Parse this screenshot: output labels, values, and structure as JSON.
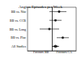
{
  "chart_data": {
    "type": "forest",
    "title": "Angina Episodes per Week",
    "categories": [
      "BB vs. Nitr",
      "BB vs. CCB",
      "BB vs. Long",
      "BB vs. Plac",
      "All Studies"
    ],
    "values": [
      0.6,
      0.3,
      -0.2,
      0.9,
      0.3
    ],
    "low": [
      -0.2,
      -0.2,
      -1.0,
      0.4,
      0.0
    ],
    "high": [
      1.2,
      0.8,
      0.6,
      1.4,
      0.6
    ],
    "reference": 0,
    "xlim": [
      -2,
      2
    ],
    "tick_labels": "y",
    "footer_left": "Favours BB",
    "footer_right": "Favours CA",
    "color": "#000000",
    "marker": "circle",
    "grid": false
  }
}
